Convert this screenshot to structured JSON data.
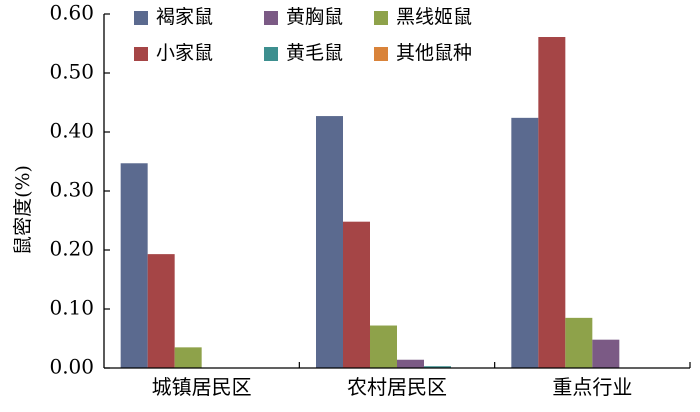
{
  "chart_data": {
    "type": "bar",
    "categories": [
      "城镇居民区",
      "农村居民区",
      "重点行业"
    ],
    "series": [
      {
        "name": "褐家鼠",
        "color": "#5b6a8f",
        "values": [
          0.347,
          0.427,
          0.424
        ]
      },
      {
        "name": "小家鼠",
        "color": "#a54546",
        "values": [
          0.193,
          0.248,
          0.561
        ]
      },
      {
        "name": "黄胸鼠",
        "color": "#7b5a85",
        "values": [
          0.0,
          0.014,
          0.048
        ]
      },
      {
        "name": "黄毛鼠",
        "color": "#3d8f8f",
        "values": [
          0.0,
          0.003,
          0.0
        ]
      },
      {
        "name": "黑线姬鼠",
        "color": "#8ea24a",
        "values": [
          0.035,
          0.072,
          0.085
        ]
      },
      {
        "name": "其他鼠种",
        "color": "#d9833a",
        "values": [
          0.0,
          0.0,
          0.0
        ]
      }
    ],
    "xlabel": "",
    "ylabel": "鼠密度(%)",
    "ylim": [
      0,
      0.6
    ],
    "yticks": [
      "0.00",
      "0.10",
      "0.20",
      "0.30",
      "0.40",
      "0.50",
      "0.60"
    ],
    "legend": {
      "placement": "top",
      "order": [
        "褐家鼠",
        "黄胸鼠",
        "黑线姬鼠",
        "小家鼠",
        "黄毛鼠",
        "其他鼠种"
      ]
    },
    "grid": false
  }
}
